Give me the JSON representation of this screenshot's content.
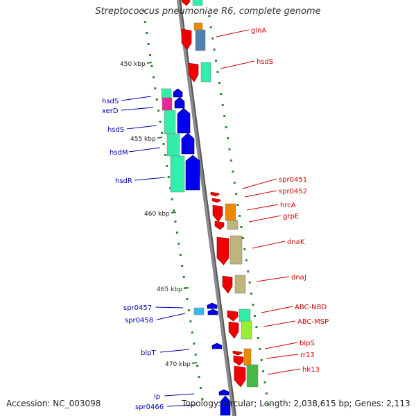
{
  "header": {
    "title": "Streptococcus pneumoniae R6, complete genome"
  },
  "footer": {
    "accession": "Accession: NC_003098",
    "summary": "Topology: circular; Length: 2,038,615 bp; Genes: 2,113"
  },
  "colors": {
    "backbone": "#8a8a8a",
    "tick": "#2e8b2e",
    "forward_label": "#cc0000",
    "reverse_label": "#0000aa",
    "forward_cds": "#ee0000",
    "reverse_cds": "#0000ee",
    "cog_teal": "#33eeaa",
    "cog_orange": "#ee8800",
    "cog_steelblue": "#4f81b0",
    "cog_khaki": "#bdb57b",
    "cog_magenta": "#ee2299",
    "cog_cyan": "#33bbee",
    "cog_lime": "#99ee33",
    "cog_green": "#44bb44"
  },
  "ruler": {
    "unit": "kbp",
    "labels": [
      "450 kbp",
      "455 kbp",
      "460 kbp",
      "465 kbp",
      "470 kbp"
    ]
  },
  "genes": [
    {
      "name": "glnA",
      "strand": "forward",
      "cog": [
        "orange",
        "steelblue"
      ]
    },
    {
      "name": "hsdS",
      "strand": "forward",
      "cog": [
        "teal"
      ]
    },
    {
      "name": "hsdS",
      "strand": "reverse",
      "cog": [
        "teal"
      ]
    },
    {
      "name": "xerD",
      "strand": "reverse",
      "cog": [
        "magenta"
      ]
    },
    {
      "name": "hsdS",
      "strand": "reverse",
      "cog": [
        "teal"
      ]
    },
    {
      "name": "hsdM",
      "strand": "reverse",
      "cog": [
        "teal"
      ]
    },
    {
      "name": "hsdR",
      "strand": "reverse",
      "cog": [
        "teal"
      ]
    },
    {
      "name": "spr0451",
      "strand": "forward",
      "cog": []
    },
    {
      "name": "spr0452",
      "strand": "forward",
      "cog": []
    },
    {
      "name": "hrcA",
      "strand": "forward",
      "cog": [
        "orange"
      ]
    },
    {
      "name": "grpE",
      "strand": "forward",
      "cog": [
        "khaki"
      ]
    },
    {
      "name": "dnaK",
      "strand": "forward",
      "cog": [
        "khaki"
      ]
    },
    {
      "name": "dnaJ",
      "strand": "forward",
      "cog": [
        "khaki"
      ]
    },
    {
      "name": "spr0457",
      "strand": "reverse",
      "cog": [
        "cyan"
      ]
    },
    {
      "name": "spr0458",
      "strand": "reverse",
      "cog": []
    },
    {
      "name": "ABC-NBD",
      "strand": "forward",
      "cog": [
        "teal"
      ]
    },
    {
      "name": "ABC-MSP",
      "strand": "forward",
      "cog": [
        "lime"
      ]
    },
    {
      "name": "blpT",
      "strand": "reverse",
      "cog": []
    },
    {
      "name": "blpS",
      "strand": "forward",
      "cog": []
    },
    {
      "name": "rr13",
      "strand": "forward",
      "cog": [
        "orange"
      ]
    },
    {
      "name": "hk13",
      "strand": "forward",
      "cog": [
        "green"
      ]
    },
    {
      "name": "ip",
      "strand": "reverse",
      "cog": []
    },
    {
      "name": "spr0466",
      "strand": "reverse",
      "cog": []
    }
  ]
}
